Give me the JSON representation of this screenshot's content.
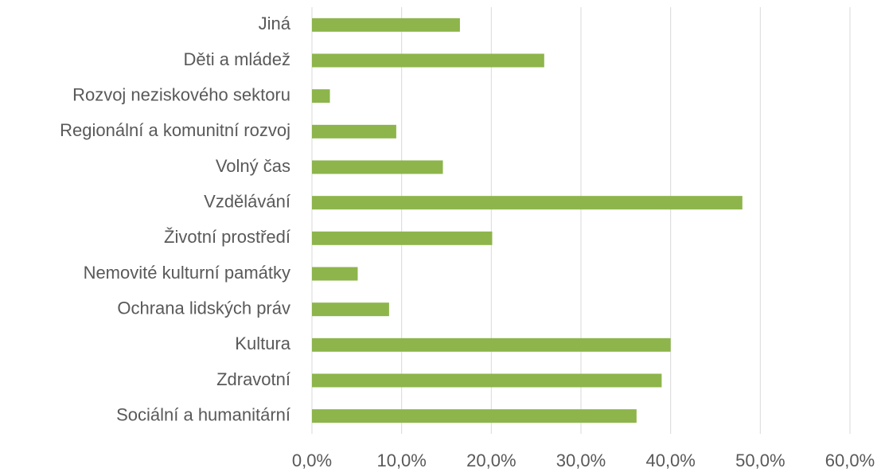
{
  "chart_data": {
    "type": "hbar",
    "categories": [
      "Jiná",
      "Děti a mládež",
      "Rozvoj neziskového sektoru",
      "Regionální a komunitní rozvoj",
      "Volný čas",
      "Vzdělávání",
      "Životní prostředí",
      "Nemovité kulturní památky",
      "Ochrana lidských práv",
      "Kultura",
      "Zdravotní",
      "Sociální a humanitární"
    ],
    "values": [
      16.5,
      25.9,
      2.0,
      9.4,
      14.6,
      48.0,
      20.1,
      5.1,
      8.6,
      40.0,
      39.0,
      36.2
    ],
    "color": "#8db54b",
    "xlim": [
      0,
      60
    ],
    "xticks": [
      {
        "value": 0,
        "label": "0,0%"
      },
      {
        "value": 10,
        "label": "10,0%"
      },
      {
        "value": 20,
        "label": "20,0%"
      },
      {
        "value": 30,
        "label": "30,0%"
      },
      {
        "value": 40,
        "label": "40,0%"
      },
      {
        "value": 50,
        "label": "50,0%"
      },
      {
        "value": 60,
        "label": "60,0%"
      }
    ],
    "grid": true
  }
}
